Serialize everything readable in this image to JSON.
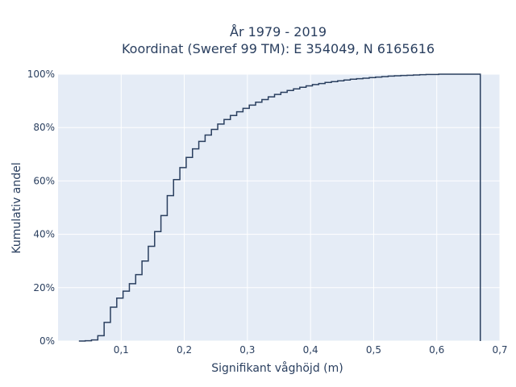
{
  "chart_data": {
    "type": "line",
    "title_lines": [
      "År 1979 - 2019",
      "Koordinat (Sweref 99 TM): E 354049, N 6165616"
    ],
    "xlabel": "Signifikant våghöjd (m)",
    "ylabel": "Kumulativ andel",
    "xlim": [
      0.0,
      0.7
    ],
    "ylim": [
      0,
      1
    ],
    "x_ticks": [
      0.1,
      0.2,
      0.3,
      0.4,
      0.5,
      0.6,
      0.7
    ],
    "x_tick_labels": [
      "0,1",
      "0,2",
      "0,3",
      "0,4",
      "0,5",
      "0,6",
      "0,7"
    ],
    "y_ticks": [
      0,
      0.2,
      0.4,
      0.6,
      0.8,
      1.0
    ],
    "y_tick_labels": [
      "0%",
      "20%",
      "40%",
      "60%",
      "80%",
      "100%"
    ],
    "grid": true,
    "line_shape": "step",
    "colors": {
      "plot_bg": "#e5ecf6",
      "grid": "#ffffff",
      "line": "#2a3f5f",
      "text": "#2a3f5f"
    },
    "series": [
      {
        "x": [
          0.033,
          0.043,
          0.053,
          0.063,
          0.073,
          0.083,
          0.093,
          0.103,
          0.113,
          0.123,
          0.133,
          0.143,
          0.153,
          0.163,
          0.173,
          0.183,
          0.193,
          0.203,
          0.213,
          0.223,
          0.233,
          0.243,
          0.253,
          0.263,
          0.273,
          0.283,
          0.293,
          0.303,
          0.313,
          0.323,
          0.333,
          0.343,
          0.353,
          0.363,
          0.373,
          0.383,
          0.393,
          0.403,
          0.413,
          0.423,
          0.433,
          0.443,
          0.453,
          0.463,
          0.473,
          0.483,
          0.493,
          0.503,
          0.513,
          0.523,
          0.533,
          0.543,
          0.553,
          0.563,
          0.573,
          0.583,
          0.593,
          0.603,
          0.613,
          0.623,
          0.633,
          0.643,
          0.653,
          0.663,
          0.669
        ],
        "y": [
          0.0,
          0.001,
          0.004,
          0.02,
          0.07,
          0.127,
          0.161,
          0.187,
          0.215,
          0.249,
          0.3,
          0.355,
          0.41,
          0.47,
          0.545,
          0.605,
          0.65,
          0.688,
          0.72,
          0.748,
          0.772,
          0.793,
          0.813,
          0.83,
          0.845,
          0.859,
          0.872,
          0.884,
          0.895,
          0.905,
          0.915,
          0.924,
          0.932,
          0.939,
          0.945,
          0.951,
          0.956,
          0.961,
          0.965,
          0.969,
          0.972,
          0.975,
          0.978,
          0.981,
          0.983,
          0.985,
          0.987,
          0.989,
          0.991,
          0.993,
          0.994,
          0.995,
          0.996,
          0.997,
          0.998,
          0.999,
          0.999,
          1.0,
          1.0,
          1.0,
          1.0,
          1.0,
          1.0,
          1.0,
          0.0
        ]
      }
    ]
  }
}
